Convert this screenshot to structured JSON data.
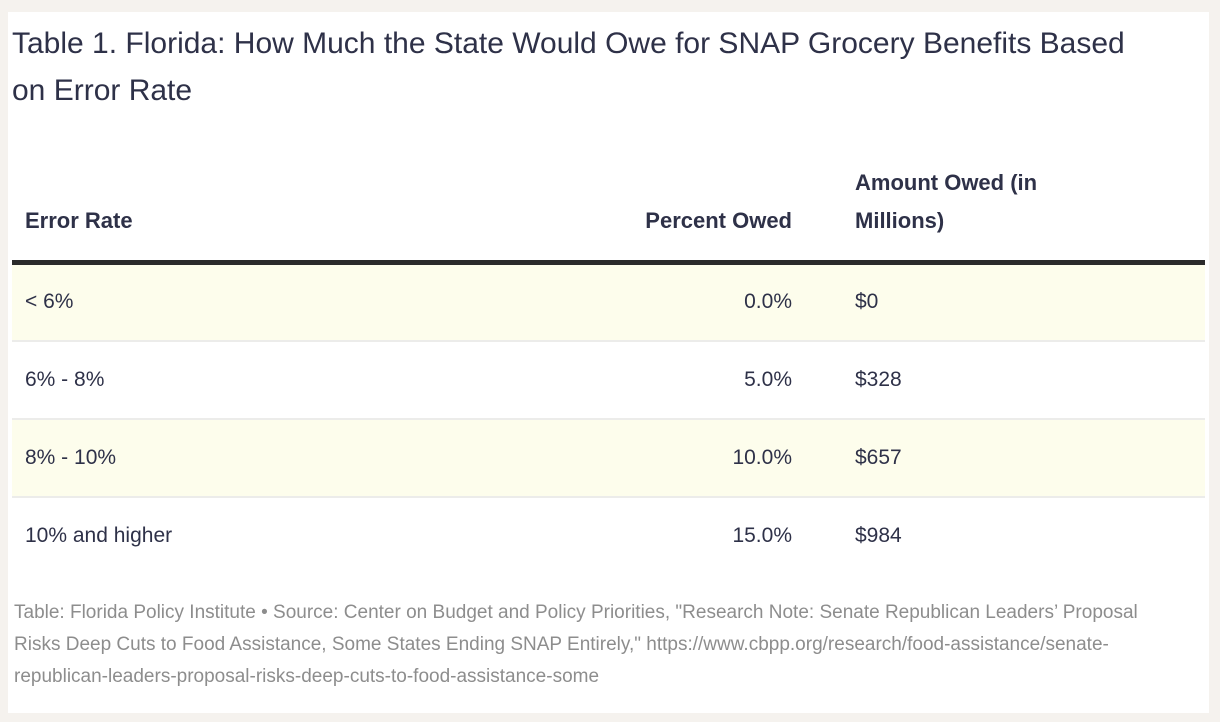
{
  "title": "Table 1. Florida: How Much the State Would Owe for SNAP Grocery Benefits Based on Error Rate",
  "table": {
    "columns": {
      "error_rate": "Error Rate",
      "percent_owed": "Percent Owed",
      "amount_owed": "Amount Owed (in Millions)"
    },
    "rows": [
      {
        "error_rate": "< 6%",
        "percent_owed": "0.0%",
        "amount_owed": "$0"
      },
      {
        "error_rate": "6% - 8%",
        "percent_owed": "5.0%",
        "amount_owed": "$328"
      },
      {
        "error_rate": "8% - 10%",
        "percent_owed": "10.0%",
        "amount_owed": "$657"
      },
      {
        "error_rate": "10% and higher",
        "percent_owed": "15.0%",
        "amount_owed": "$984"
      }
    ]
  },
  "footer": "Table: Florida Policy Institute • Source: Center on Budget and Policy Priorities, \"Research Note: Senate Republican Leaders’ Proposal Risks Deep Cuts to Food Assistance, Some States Ending SNAP Entirely,\" https://www.cbpp.org/research/food-assistance/senate-republican-leaders-proposal-risks-deep-cuts-to-food-assistance-some",
  "chart_data": {
    "type": "table",
    "title": "Table 1. Florida: How Much the State Would Owe for SNAP Grocery Benefits Based on Error Rate",
    "columns": [
      "Error Rate",
      "Percent Owed",
      "Amount Owed (in Millions)"
    ],
    "rows": [
      [
        "< 6%",
        "0.0%",
        "$0"
      ],
      [
        "6% - 8%",
        "5.0%",
        "$328"
      ],
      [
        "8% - 10%",
        "10.0%",
        "$657"
      ],
      [
        "10% and higher",
        "15.0%",
        "$984"
      ]
    ],
    "percent_owed_values": [
      0.0,
      5.0,
      10.0,
      15.0
    ],
    "amount_owed_millions": [
      0,
      328,
      657,
      984
    ],
    "source": "Table: Florida Policy Institute • Source: Center on Budget and Policy Priorities, \"Research Note: Senate Republican Leaders’ Proposal Risks Deep Cuts to Food Assistance, Some States Ending SNAP Entirely,\" https://www.cbpp.org/research/food-assistance/senate-republican-leaders-proposal-risks-deep-cuts-to-food-assistance-some",
    "layout": {
      "striped_row_indices": [
        0,
        2
      ],
      "header_rule": true,
      "legend": "none"
    }
  },
  "colors": {
    "bg": "#f5f2ee",
    "card": "#ffffff",
    "ink": "#2e3148",
    "stripe": "#fdfdec",
    "rule": "#2b2b2b",
    "divider": "#ececea",
    "muted": "#8d8d8d"
  }
}
